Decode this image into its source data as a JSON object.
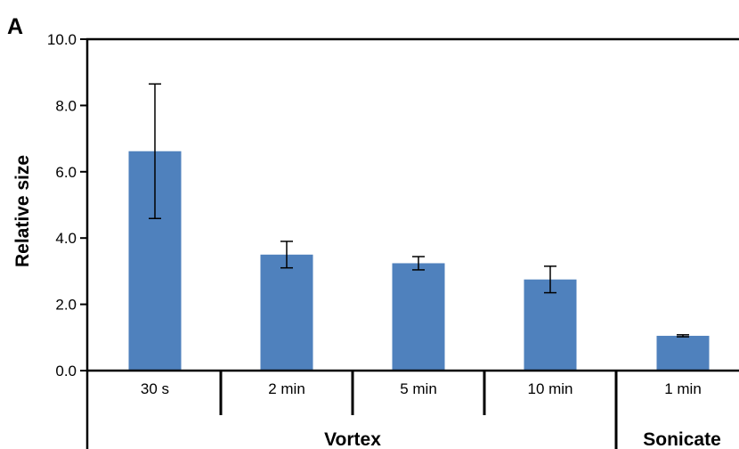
{
  "panel_label": "A",
  "chart_data": {
    "type": "bar",
    "categories": [
      "30 s",
      "2 min",
      "5 min",
      "10 min",
      "1 min"
    ],
    "values": [
      6.62,
      3.5,
      3.24,
      2.75,
      1.05
    ],
    "errors": [
      2.03,
      0.4,
      0.2,
      0.4,
      0.03
    ],
    "groups": [
      {
        "label": "Vortex",
        "categories": [
          "30 s",
          "2 min",
          "5 min",
          "10 min"
        ]
      },
      {
        "label": "Sonicate",
        "categories": [
          "1 min"
        ]
      }
    ],
    "ylabel": "Relative size",
    "ylim": [
      0,
      10
    ],
    "yticks": [
      "0.0",
      "2.0",
      "4.0",
      "6.0",
      "8.0",
      "10.0"
    ],
    "bar_color": "#4f81bd",
    "grid": false
  }
}
